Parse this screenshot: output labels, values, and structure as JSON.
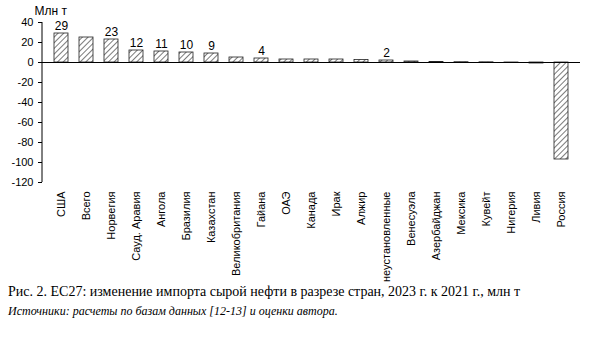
{
  "chart_data": {
    "type": "bar",
    "title": "Рис. 2. ЕС27: изменение импорта сырой нефти в разрезе стран, 2023 г. к 2021 г., млн т",
    "subtitle": "Источники: расчеты по базам данных [12-13] и оценки автора.",
    "y_label": "Млн т",
    "categories": [
      "США",
      "Всего",
      "Норвегия",
      "Сауд. Аравия",
      "Ангола",
      "Бразилия",
      "Казахстан",
      "Великобритания",
      "Гайана",
      "ОАЭ",
      "Канада",
      "Ирак",
      "Алжир",
      "неустановленные",
      "Венесуэла",
      "Азербайджан",
      "Мексика",
      "Кувейт",
      "Нигерия",
      "Ливия",
      "Россия"
    ],
    "values": [
      29,
      25,
      23,
      12,
      11,
      10,
      9,
      5,
      4,
      3,
      3,
      3,
      2.5,
      2,
      1,
      0.5,
      0.3,
      0.2,
      -0.5,
      -1,
      -97
    ],
    "value_labels": [
      "29",
      null,
      "23",
      "12",
      "11",
      "10",
      "9",
      null,
      "4",
      null,
      null,
      null,
      null,
      "2",
      null,
      null,
      null,
      null,
      null,
      null,
      null
    ],
    "data_labels": true,
    "color": "#222222",
    "ylim": [
      -120,
      40
    ],
    "yticks": [
      -120,
      -100,
      -80,
      -60,
      -40,
      -20,
      0,
      20,
      40
    ],
    "grid": false
  }
}
